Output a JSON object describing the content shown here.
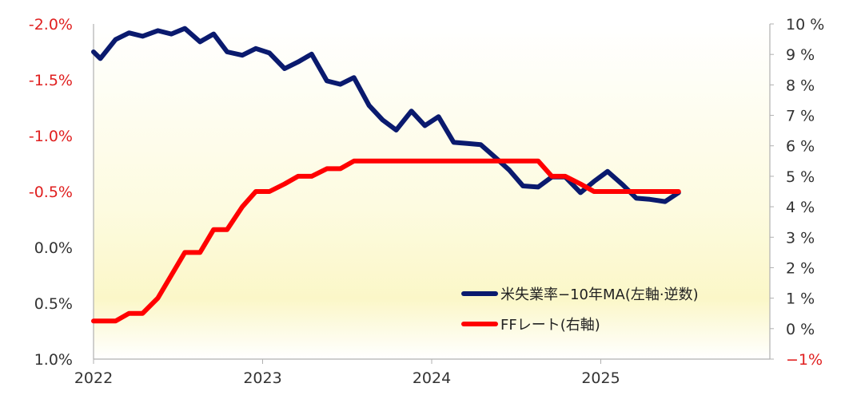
{
  "chart_data": {
    "type": "line",
    "x_range": [
      2022.0,
      2026.0
    ],
    "x_ticks": [
      "2022",
      "2023",
      "2024",
      "2025"
    ],
    "y_left": {
      "reversed": true,
      "range": [
        -2.0,
        1.0
      ],
      "ticks": [
        {
          "value": -2.0,
          "label": "-2.0%"
        },
        {
          "value": -1.5,
          "label": "-1.5%"
        },
        {
          "value": -1.0,
          "label": "-1.0%"
        },
        {
          "value": -0.5,
          "label": "-0.5%"
        },
        {
          "value": 0.0,
          "label": "0.0%"
        },
        {
          "value": 0.5,
          "label": "0.5%"
        },
        {
          "value": 1.0,
          "label": "1.0%"
        }
      ]
    },
    "y_right": {
      "range": [
        -1,
        10
      ],
      "ticks": [
        {
          "value": 10,
          "label": "10 %"
        },
        {
          "value": 9,
          "label": "9 %"
        },
        {
          "value": 8,
          "label": "8 %"
        },
        {
          "value": 7,
          "label": "7 %"
        },
        {
          "value": 6,
          "label": "6 %"
        },
        {
          "value": 5,
          "label": "5 %"
        },
        {
          "value": 4,
          "label": "4 %"
        },
        {
          "value": 3,
          "label": "3 %"
        },
        {
          "value": 2,
          "label": "2 %"
        },
        {
          "value": 1,
          "label": "1 %"
        },
        {
          "value": 0,
          "label": "0 %"
        },
        {
          "value": -1,
          "label": "−1%"
        }
      ]
    },
    "grid": false,
    "legend_position": "bottom-right",
    "series": [
      {
        "name": "米失業率−10年MA(左軸·逆数)",
        "axis": "left",
        "color": "#0a1a6e",
        "points": [
          [
            2022.0,
            -1.75
          ],
          [
            2022.04,
            -1.69
          ],
          [
            2022.13,
            -1.86
          ],
          [
            2022.21,
            -1.92
          ],
          [
            2022.29,
            -1.89
          ],
          [
            2022.38,
            -1.94
          ],
          [
            2022.46,
            -1.91
          ],
          [
            2022.54,
            -1.96
          ],
          [
            2022.63,
            -1.84
          ],
          [
            2022.71,
            -1.91
          ],
          [
            2022.79,
            -1.75
          ],
          [
            2022.88,
            -1.72
          ],
          [
            2022.96,
            -1.78
          ],
          [
            2023.04,
            -1.74
          ],
          [
            2023.13,
            -1.6
          ],
          [
            2023.21,
            -1.66
          ],
          [
            2023.29,
            -1.73
          ],
          [
            2023.38,
            -1.49
          ],
          [
            2023.46,
            -1.46
          ],
          [
            2023.54,
            -1.52
          ],
          [
            2023.63,
            -1.27
          ],
          [
            2023.71,
            -1.14
          ],
          [
            2023.79,
            -1.05
          ],
          [
            2023.88,
            -1.22
          ],
          [
            2023.96,
            -1.09
          ],
          [
            2024.04,
            -1.17
          ],
          [
            2024.13,
            -0.94
          ],
          [
            2024.21,
            -0.93
          ],
          [
            2024.29,
            -0.92
          ],
          [
            2024.38,
            -0.8
          ],
          [
            2024.46,
            -0.69
          ],
          [
            2024.54,
            -0.55
          ],
          [
            2024.63,
            -0.54
          ],
          [
            2024.71,
            -0.63
          ],
          [
            2024.79,
            -0.63
          ],
          [
            2024.88,
            -0.49
          ],
          [
            2024.96,
            -0.59
          ],
          [
            2025.04,
            -0.68
          ],
          [
            2025.13,
            -0.56
          ],
          [
            2025.21,
            -0.44
          ],
          [
            2025.29,
            -0.43
          ],
          [
            2025.38,
            -0.41
          ],
          [
            2025.46,
            -0.49
          ]
        ]
      },
      {
        "name": "FFレート(右軸)",
        "axis": "right",
        "color": "#ff0000",
        "points": [
          [
            2022.0,
            0.25
          ],
          [
            2022.13,
            0.25
          ],
          [
            2022.21,
            0.5
          ],
          [
            2022.29,
            0.5
          ],
          [
            2022.38,
            1.0
          ],
          [
            2022.46,
            1.75
          ],
          [
            2022.54,
            2.5
          ],
          [
            2022.63,
            2.5
          ],
          [
            2022.71,
            3.25
          ],
          [
            2022.79,
            3.25
          ],
          [
            2022.88,
            4.0
          ],
          [
            2022.96,
            4.5
          ],
          [
            2023.04,
            4.5
          ],
          [
            2023.13,
            4.75
          ],
          [
            2023.21,
            5.0
          ],
          [
            2023.29,
            5.0
          ],
          [
            2023.38,
            5.25
          ],
          [
            2023.46,
            5.25
          ],
          [
            2023.54,
            5.5
          ],
          [
            2024.63,
            5.5
          ],
          [
            2024.71,
            5.0
          ],
          [
            2024.79,
            5.0
          ],
          [
            2024.88,
            4.75
          ],
          [
            2024.96,
            4.5
          ],
          [
            2025.46,
            4.5
          ]
        ]
      }
    ]
  }
}
